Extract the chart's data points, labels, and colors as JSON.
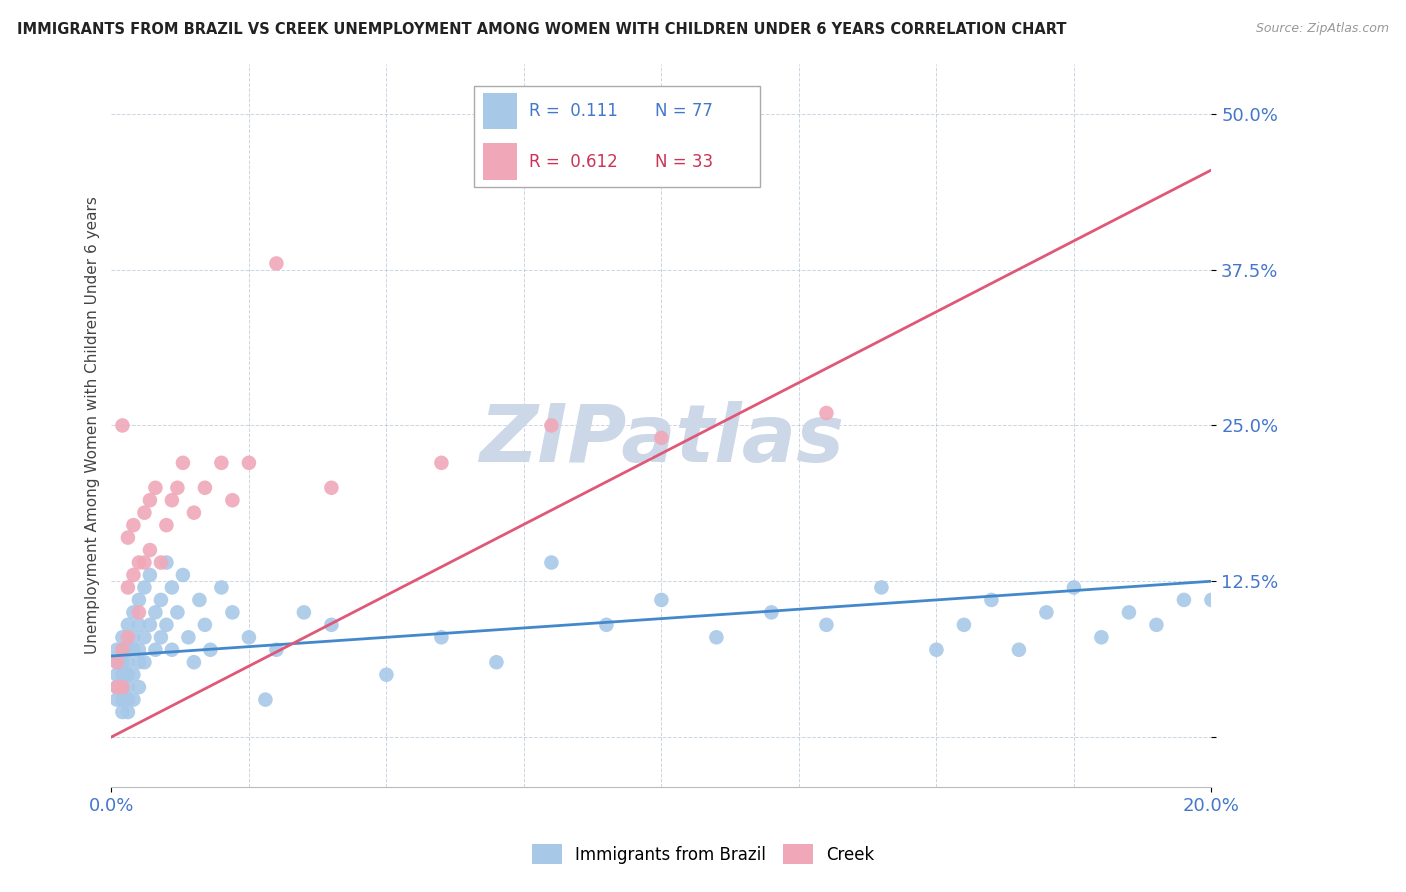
{
  "title": "IMMIGRANTS FROM BRAZIL VS CREEK UNEMPLOYMENT AMONG WOMEN WITH CHILDREN UNDER 6 YEARS CORRELATION CHART",
  "source": "Source: ZipAtlas.com",
  "ylabel": "Unemployment Among Women with Children Under 6 years",
  "xlim": [
    0.0,
    0.2
  ],
  "ylim": [
    -0.04,
    0.54
  ],
  "yticks": [
    0.0,
    0.125,
    0.25,
    0.375,
    0.5
  ],
  "ytick_labels": [
    "",
    "12.5%",
    "25.0%",
    "37.5%",
    "50.0%"
  ],
  "blue_color": "#a8c8e8",
  "pink_color": "#f0a8b8",
  "blue_line_color": "#4488cc",
  "pink_line_color": "#e05878",
  "r_n_color_blue": "#4477cc",
  "r_n_color_pink": "#cc3355",
  "watermark": "ZIPatlas",
  "watermark_color": "#ccd8e8",
  "brazil_x": [
    0.001,
    0.001,
    0.001,
    0.001,
    0.001,
    0.002,
    0.002,
    0.002,
    0.002,
    0.002,
    0.002,
    0.002,
    0.003,
    0.003,
    0.003,
    0.003,
    0.003,
    0.003,
    0.003,
    0.004,
    0.004,
    0.004,
    0.004,
    0.004,
    0.005,
    0.005,
    0.005,
    0.005,
    0.005,
    0.006,
    0.006,
    0.006,
    0.007,
    0.007,
    0.008,
    0.008,
    0.009,
    0.009,
    0.01,
    0.01,
    0.011,
    0.011,
    0.012,
    0.013,
    0.014,
    0.015,
    0.016,
    0.017,
    0.018,
    0.02,
    0.022,
    0.025,
    0.028,
    0.03,
    0.035,
    0.04,
    0.05,
    0.06,
    0.07,
    0.08,
    0.09,
    0.1,
    0.11,
    0.12,
    0.13,
    0.14,
    0.15,
    0.16,
    0.17,
    0.175,
    0.18,
    0.185,
    0.19,
    0.195,
    0.2,
    0.165,
    0.155
  ],
  "brazil_y": [
    0.06,
    0.05,
    0.07,
    0.04,
    0.03,
    0.08,
    0.06,
    0.05,
    0.04,
    0.07,
    0.03,
    0.02,
    0.09,
    0.07,
    0.06,
    0.05,
    0.04,
    0.03,
    0.02,
    0.1,
    0.08,
    0.07,
    0.05,
    0.03,
    0.11,
    0.09,
    0.07,
    0.06,
    0.04,
    0.12,
    0.08,
    0.06,
    0.13,
    0.09,
    0.1,
    0.07,
    0.11,
    0.08,
    0.14,
    0.09,
    0.12,
    0.07,
    0.1,
    0.13,
    0.08,
    0.06,
    0.11,
    0.09,
    0.07,
    0.12,
    0.1,
    0.08,
    0.03,
    0.07,
    0.1,
    0.09,
    0.05,
    0.08,
    0.06,
    0.14,
    0.09,
    0.11,
    0.08,
    0.1,
    0.09,
    0.12,
    0.07,
    0.11,
    0.1,
    0.12,
    0.08,
    0.1,
    0.09,
    0.11,
    0.11,
    0.07,
    0.09
  ],
  "creek_x": [
    0.001,
    0.001,
    0.002,
    0.002,
    0.002,
    0.003,
    0.003,
    0.003,
    0.004,
    0.004,
    0.005,
    0.005,
    0.006,
    0.006,
    0.007,
    0.007,
    0.008,
    0.009,
    0.01,
    0.011,
    0.012,
    0.013,
    0.015,
    0.017,
    0.02,
    0.022,
    0.025,
    0.03,
    0.04,
    0.06,
    0.08,
    0.1,
    0.13
  ],
  "creek_y": [
    0.06,
    0.04,
    0.25,
    0.07,
    0.04,
    0.16,
    0.12,
    0.08,
    0.17,
    0.13,
    0.14,
    0.1,
    0.18,
    0.14,
    0.19,
    0.15,
    0.2,
    0.14,
    0.17,
    0.19,
    0.2,
    0.22,
    0.18,
    0.2,
    0.22,
    0.19,
    0.22,
    0.38,
    0.2,
    0.22,
    0.25,
    0.24,
    0.26
  ],
  "blue_trendline": [
    0.065,
    0.125
  ],
  "pink_trendline": [
    0.0,
    0.455
  ]
}
